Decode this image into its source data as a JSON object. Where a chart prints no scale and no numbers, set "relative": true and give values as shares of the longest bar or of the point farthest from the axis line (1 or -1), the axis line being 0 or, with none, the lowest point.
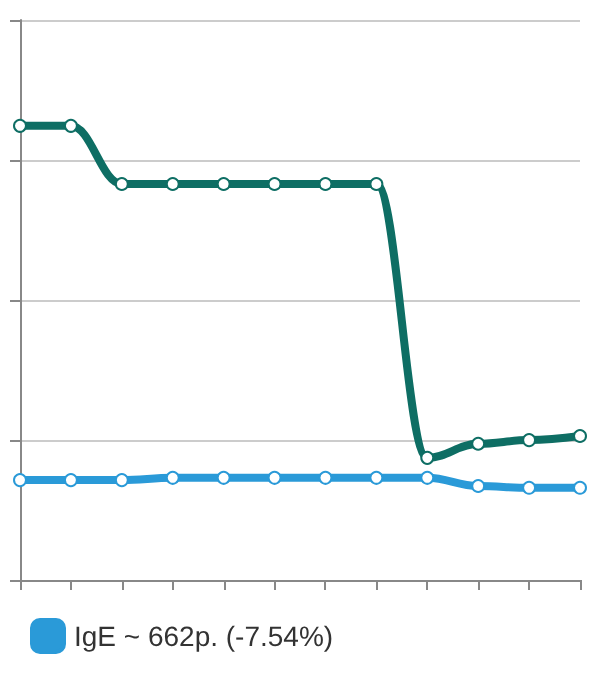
{
  "chart_data": {
    "type": "line",
    "relative": true,
    "categories": [
      null,
      null,
      null,
      null,
      null,
      null,
      null,
      null,
      null,
      null,
      null,
      null
    ],
    "series": [
      {
        "color": "#0e6e64",
        "values": [
          1,
          1,
          0.872,
          0.872,
          0.872,
          0.872,
          0.872,
          0.872,
          0.269,
          0.3,
          0.308,
          0.317
        ]
      },
      {
        "name": "IgE ~ 662р. (-7.54%)",
        "color": "#2a9ad8",
        "values": [
          0.22,
          0.22,
          0.22,
          0.225,
          0.225,
          0.225,
          0.225,
          0.225,
          0.225,
          0.207,
          0.203,
          0.203
        ]
      }
    ],
    "grid": "y",
    "legend": "bottom",
    "marker": "circle",
    "line_style": "solid"
  }
}
